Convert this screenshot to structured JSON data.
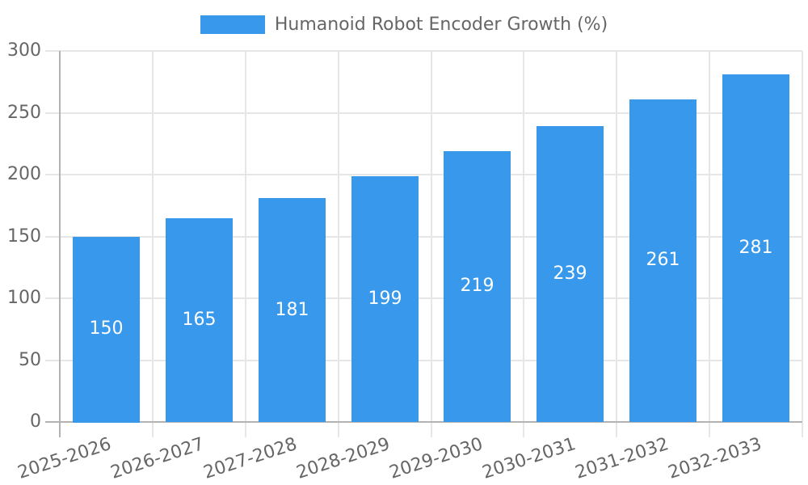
{
  "legend": {
    "label": "Humanoid Robot Encoder Growth (%)",
    "swatch_color": "#3899EC"
  },
  "chart_data": {
    "type": "bar",
    "title": "Humanoid Robot Encoder Growth (%)",
    "categories": [
      "2025-2026",
      "2026-2027",
      "2027-2028",
      "2028-2029",
      "2029-2030",
      "2030-2031",
      "2031-2032",
      "2032-2033"
    ],
    "values": [
      150,
      165,
      181,
      199,
      219,
      239,
      261,
      281
    ],
    "value_labels": [
      "150",
      "165",
      "181",
      "199",
      "219",
      "239",
      "261",
      "281"
    ],
    "xlabel": "",
    "ylabel": "",
    "ylim": [
      0,
      300
    ],
    "yticks": [
      0,
      50,
      100,
      150,
      200,
      250,
      300
    ],
    "ytick_labels": [
      "0",
      "50",
      "100",
      "150",
      "200",
      "250",
      "300"
    ],
    "grid": true,
    "legend_position": "top",
    "x_label_rotation_deg": -18,
    "colors": {
      "bar": "#3899EC",
      "bar_value_text": "#ffffff",
      "grid_line": "#E6E6E6",
      "axis_line": "#B3B3B3",
      "tick_text": "#666666",
      "legend_text": "#666666",
      "background": "#ffffff"
    }
  }
}
